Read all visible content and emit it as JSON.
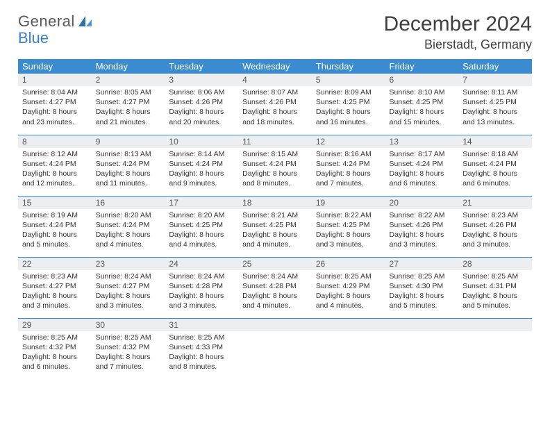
{
  "logo": {
    "gray": "General",
    "blue": "Blue"
  },
  "header": {
    "title": "December 2024",
    "location": "Bierstadt, Germany"
  },
  "colors": {
    "header_bg": "#3b8bd1",
    "header_fg": "#ffffff",
    "row_border": "#3b8bd1",
    "daynum_bg": "#eceef1",
    "text": "#333333",
    "title": "#404040"
  },
  "weekdays": [
    "Sunday",
    "Monday",
    "Tuesday",
    "Wednesday",
    "Thursday",
    "Friday",
    "Saturday"
  ],
  "days": [
    {
      "n": "1",
      "sr": "8:04 AM",
      "ss": "4:27 PM",
      "dl": "8 hours and 23 minutes."
    },
    {
      "n": "2",
      "sr": "8:05 AM",
      "ss": "4:27 PM",
      "dl": "8 hours and 21 minutes."
    },
    {
      "n": "3",
      "sr": "8:06 AM",
      "ss": "4:26 PM",
      "dl": "8 hours and 20 minutes."
    },
    {
      "n": "4",
      "sr": "8:07 AM",
      "ss": "4:26 PM",
      "dl": "8 hours and 18 minutes."
    },
    {
      "n": "5",
      "sr": "8:09 AM",
      "ss": "4:25 PM",
      "dl": "8 hours and 16 minutes."
    },
    {
      "n": "6",
      "sr": "8:10 AM",
      "ss": "4:25 PM",
      "dl": "8 hours and 15 minutes."
    },
    {
      "n": "7",
      "sr": "8:11 AM",
      "ss": "4:25 PM",
      "dl": "8 hours and 13 minutes."
    },
    {
      "n": "8",
      "sr": "8:12 AM",
      "ss": "4:24 PM",
      "dl": "8 hours and 12 minutes."
    },
    {
      "n": "9",
      "sr": "8:13 AM",
      "ss": "4:24 PM",
      "dl": "8 hours and 11 minutes."
    },
    {
      "n": "10",
      "sr": "8:14 AM",
      "ss": "4:24 PM",
      "dl": "8 hours and 9 minutes."
    },
    {
      "n": "11",
      "sr": "8:15 AM",
      "ss": "4:24 PM",
      "dl": "8 hours and 8 minutes."
    },
    {
      "n": "12",
      "sr": "8:16 AM",
      "ss": "4:24 PM",
      "dl": "8 hours and 7 minutes."
    },
    {
      "n": "13",
      "sr": "8:17 AM",
      "ss": "4:24 PM",
      "dl": "8 hours and 6 minutes."
    },
    {
      "n": "14",
      "sr": "8:18 AM",
      "ss": "4:24 PM",
      "dl": "8 hours and 6 minutes."
    },
    {
      "n": "15",
      "sr": "8:19 AM",
      "ss": "4:24 PM",
      "dl": "8 hours and 5 minutes."
    },
    {
      "n": "16",
      "sr": "8:20 AM",
      "ss": "4:24 PM",
      "dl": "8 hours and 4 minutes."
    },
    {
      "n": "17",
      "sr": "8:20 AM",
      "ss": "4:25 PM",
      "dl": "8 hours and 4 minutes."
    },
    {
      "n": "18",
      "sr": "8:21 AM",
      "ss": "4:25 PM",
      "dl": "8 hours and 4 minutes."
    },
    {
      "n": "19",
      "sr": "8:22 AM",
      "ss": "4:25 PM",
      "dl": "8 hours and 3 minutes."
    },
    {
      "n": "20",
      "sr": "8:22 AM",
      "ss": "4:26 PM",
      "dl": "8 hours and 3 minutes."
    },
    {
      "n": "21",
      "sr": "8:23 AM",
      "ss": "4:26 PM",
      "dl": "8 hours and 3 minutes."
    },
    {
      "n": "22",
      "sr": "8:23 AM",
      "ss": "4:27 PM",
      "dl": "8 hours and 3 minutes."
    },
    {
      "n": "23",
      "sr": "8:24 AM",
      "ss": "4:27 PM",
      "dl": "8 hours and 3 minutes."
    },
    {
      "n": "24",
      "sr": "8:24 AM",
      "ss": "4:28 PM",
      "dl": "8 hours and 3 minutes."
    },
    {
      "n": "25",
      "sr": "8:24 AM",
      "ss": "4:28 PM",
      "dl": "8 hours and 4 minutes."
    },
    {
      "n": "26",
      "sr": "8:25 AM",
      "ss": "4:29 PM",
      "dl": "8 hours and 4 minutes."
    },
    {
      "n": "27",
      "sr": "8:25 AM",
      "ss": "4:30 PM",
      "dl": "8 hours and 5 minutes."
    },
    {
      "n": "28",
      "sr": "8:25 AM",
      "ss": "4:31 PM",
      "dl": "8 hours and 5 minutes."
    },
    {
      "n": "29",
      "sr": "8:25 AM",
      "ss": "4:32 PM",
      "dl": "8 hours and 6 minutes."
    },
    {
      "n": "30",
      "sr": "8:25 AM",
      "ss": "4:32 PM",
      "dl": "8 hours and 7 minutes."
    },
    {
      "n": "31",
      "sr": "8:25 AM",
      "ss": "4:33 PM",
      "dl": "8 hours and 8 minutes."
    }
  ],
  "labels": {
    "sunrise": "Sunrise: ",
    "sunset": "Sunset: ",
    "daylight": "Daylight: "
  },
  "layout": {
    "start_weekday": 0,
    "cols": 7,
    "rows": 5
  }
}
